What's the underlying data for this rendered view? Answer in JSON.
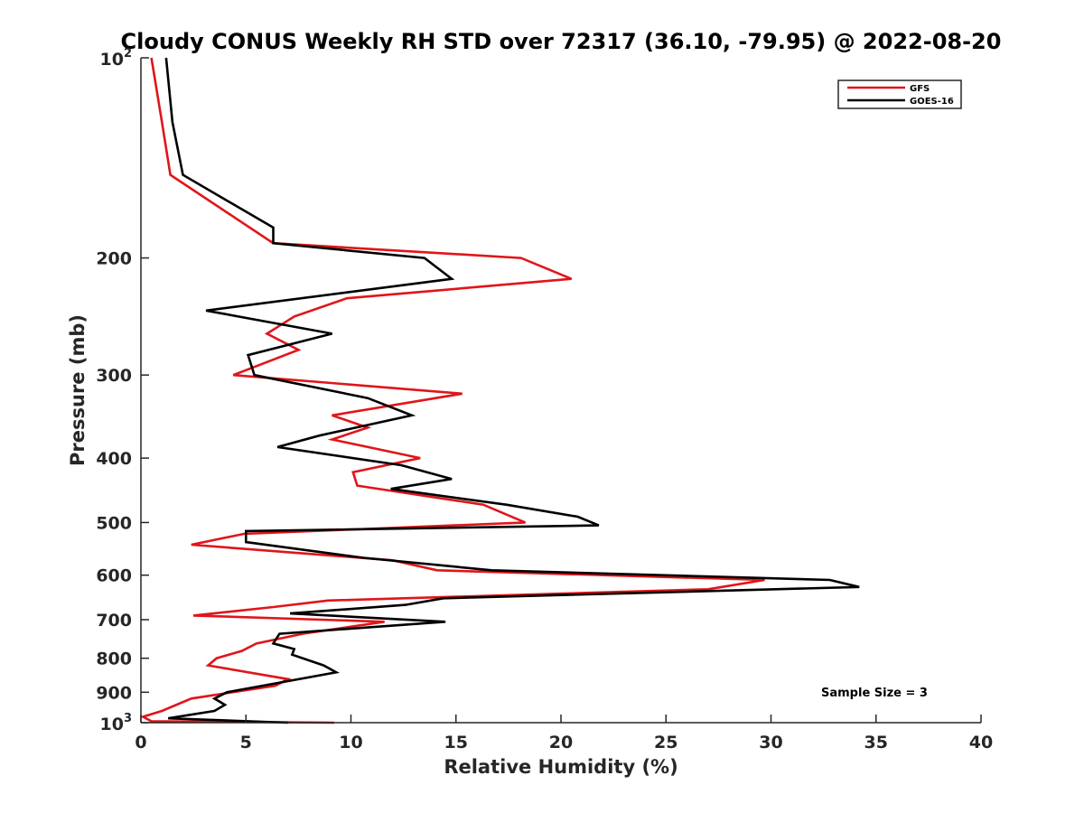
{
  "chart_data": {
    "type": "line",
    "title": "Cloudy CONUS Weekly RH STD over 72317 (36.10, -79.95) @ 2022-08-20",
    "xlabel": "Relative Humidity (%)",
    "ylabel": "Pressure (mb)",
    "xlim": [
      0,
      40
    ],
    "ylim": [
      100,
      1000
    ],
    "yscale": "log",
    "y_reversed": true,
    "grid": false,
    "legend_placement": "top-right",
    "x_ticks": [
      "0",
      "5",
      "10",
      "15",
      "20",
      "25",
      "30",
      "35",
      "40"
    ],
    "y_ticks": [
      {
        "value": 100,
        "base": "10",
        "exp": "2"
      },
      {
        "value": 200,
        "label": "200"
      },
      {
        "value": 300,
        "label": "300"
      },
      {
        "value": 400,
        "label": "400"
      },
      {
        "value": 500,
        "label": "500"
      },
      {
        "value": 600,
        "label": "600"
      },
      {
        "value": 700,
        "label": "700"
      },
      {
        "value": 800,
        "label": "800"
      },
      {
        "value": 900,
        "label": "900"
      },
      {
        "value": 1000,
        "base": "10",
        "exp": "3"
      }
    ],
    "annotation": "Sample Size = 3",
    "series": [
      {
        "name": "GFS",
        "color": "#e0151a",
        "points": [
          [
            0.5,
            100
          ],
          [
            1.0,
            125
          ],
          [
            1.4,
            150
          ],
          [
            4.6,
            175
          ],
          [
            6.3,
            190
          ],
          [
            18.1,
            200
          ],
          [
            20.5,
            215
          ],
          [
            9.8,
            230
          ],
          [
            7.3,
            245
          ],
          [
            6.0,
            260
          ],
          [
            7.5,
            275
          ],
          [
            4.4,
            300
          ],
          [
            15.3,
            320
          ],
          [
            9.1,
            345
          ],
          [
            10.8,
            360
          ],
          [
            9.1,
            375
          ],
          [
            13.3,
            400
          ],
          [
            10.1,
            420
          ],
          [
            10.3,
            440
          ],
          [
            16.3,
            470
          ],
          [
            18.3,
            500
          ],
          [
            4.9,
            520
          ],
          [
            2.4,
            540
          ],
          [
            12.0,
            570
          ],
          [
            14.1,
            590
          ],
          [
            29.7,
            610
          ],
          [
            27.0,
            630
          ],
          [
            8.9,
            655
          ],
          [
            6.3,
            670
          ],
          [
            2.5,
            690
          ],
          [
            11.6,
            705
          ],
          [
            7.7,
            735
          ],
          [
            5.5,
            760
          ],
          [
            4.8,
            780
          ],
          [
            3.6,
            800
          ],
          [
            3.2,
            820
          ],
          [
            7.0,
            860
          ],
          [
            6.4,
            880
          ],
          [
            2.4,
            920
          ],
          [
            1.0,
            960
          ],
          [
            0.1,
            980
          ],
          [
            0.5,
            995
          ],
          [
            9.2,
            1000
          ]
        ]
      },
      {
        "name": "GOES-16",
        "color": "#000000",
        "points": [
          [
            1.2,
            100
          ],
          [
            1.5,
            125
          ],
          [
            2.0,
            150
          ],
          [
            6.3,
            180
          ],
          [
            6.3,
            190
          ],
          [
            13.5,
            200
          ],
          [
            14.8,
            215
          ],
          [
            3.1,
            240
          ],
          [
            9.1,
            260
          ],
          [
            5.1,
            280
          ],
          [
            5.4,
            300
          ],
          [
            10.8,
            325
          ],
          [
            12.9,
            345
          ],
          [
            8.5,
            370
          ],
          [
            6.5,
            385
          ],
          [
            12.4,
            410
          ],
          [
            14.8,
            430
          ],
          [
            11.9,
            445
          ],
          [
            17.4,
            470
          ],
          [
            20.8,
            490
          ],
          [
            21.8,
            505
          ],
          [
            5.0,
            515
          ],
          [
            5.0,
            535
          ],
          [
            10.6,
            565
          ],
          [
            16.7,
            590
          ],
          [
            32.8,
            610
          ],
          [
            34.2,
            625
          ],
          [
            14.4,
            650
          ],
          [
            12.6,
            665
          ],
          [
            7.1,
            685
          ],
          [
            14.5,
            705
          ],
          [
            6.6,
            735
          ],
          [
            6.3,
            760
          ],
          [
            7.3,
            775
          ],
          [
            7.2,
            790
          ],
          [
            8.7,
            820
          ],
          [
            9.3,
            840
          ],
          [
            4.1,
            900
          ],
          [
            3.5,
            920
          ],
          [
            4.0,
            940
          ],
          [
            3.5,
            960
          ],
          [
            1.3,
            985
          ],
          [
            7.0,
            1000
          ]
        ]
      }
    ]
  }
}
